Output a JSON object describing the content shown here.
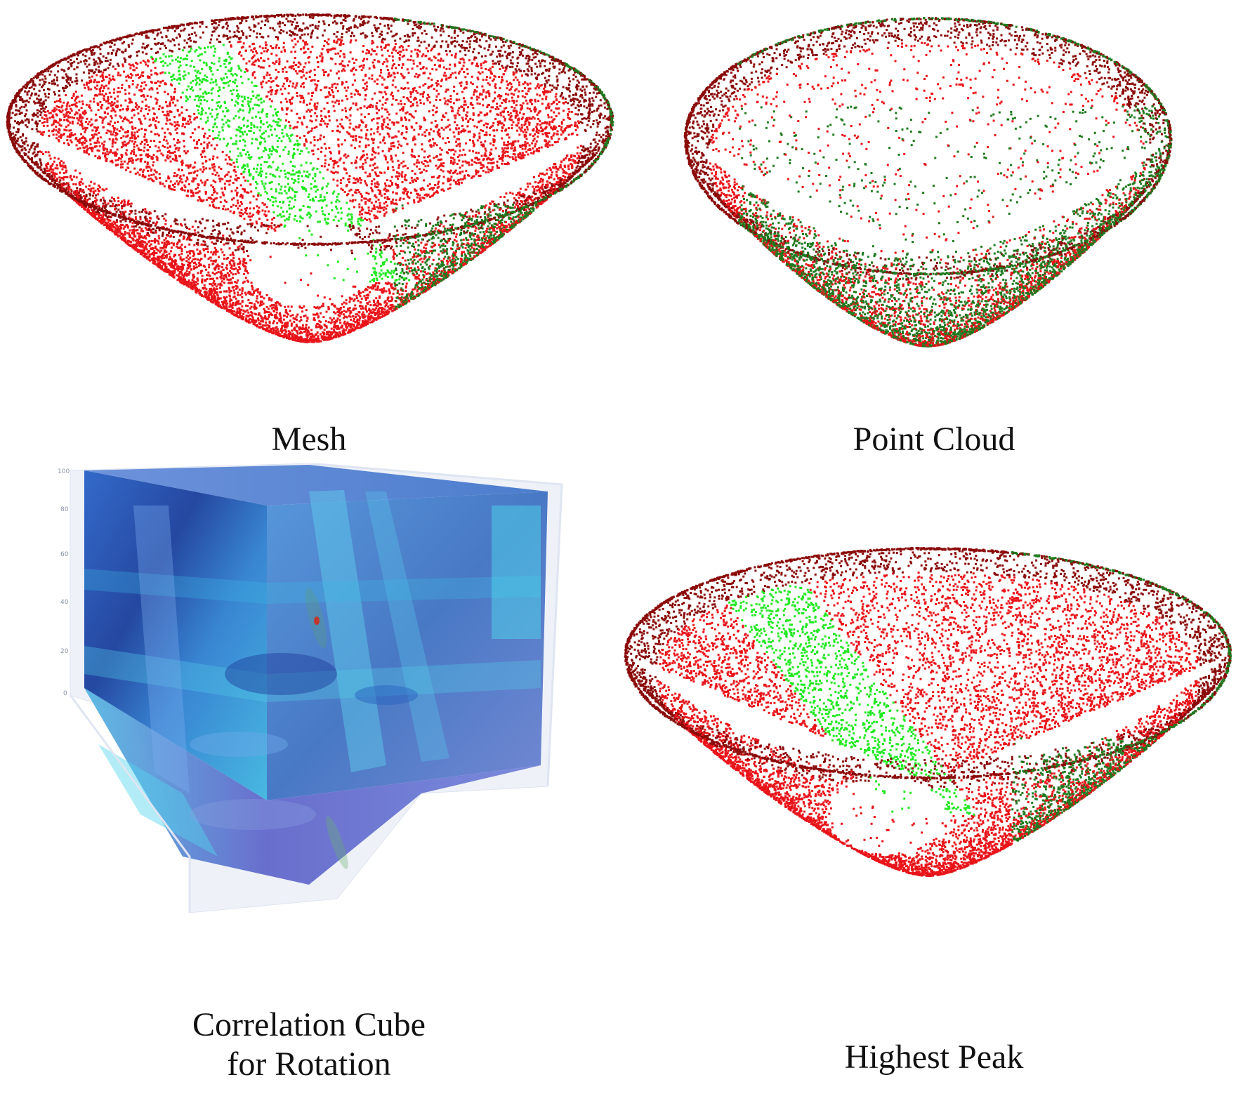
{
  "panels": {
    "mesh": {
      "caption": "Mesh"
    },
    "point_cloud": {
      "caption": "Point Cloud"
    },
    "correlation_cube": {
      "caption_line1": "Correlation Cube",
      "caption_line2": "for Rotation",
      "y_ticks": [
        "100",
        "80",
        "60",
        "40",
        "20",
        "0"
      ]
    },
    "highest_peak": {
      "caption": "Highest Peak"
    }
  },
  "colors": {
    "surface_red": "#e8141a",
    "rim_dark_red": "#8b0a0a",
    "highlight_green": "#22e822",
    "dark_green": "#1f7a1f",
    "cube_deep_blue": "#1a3f9c",
    "cube_cyan": "#38c8e8",
    "peak_marker": "#c0392b"
  }
}
